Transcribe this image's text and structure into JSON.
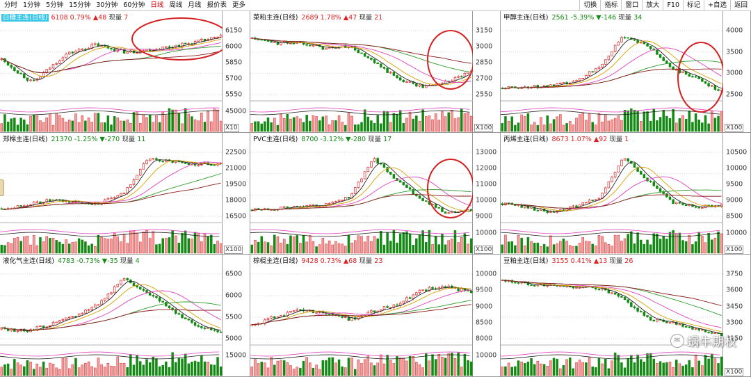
{
  "toolbar": {
    "periods": [
      "分时",
      "1分钟",
      "5分钟",
      "15分钟",
      "30分钟",
      "60分钟",
      "日线",
      "周线",
      "月线",
      "报价表",
      "更多"
    ],
    "active": "日线",
    "right": [
      "切换",
      "指标",
      "窗口",
      "放大",
      "F10",
      "标记",
      "+自选",
      "返回"
    ]
  },
  "watermark": {
    "text": "蜗牛期权",
    "icon": "wechat-icon"
  },
  "colors": {
    "up": "#e02020",
    "down": "#138a13",
    "highlight": "#35c6e8",
    "circle": "#d42020"
  },
  "panels": [
    {
      "name": "白糖主连(日线)",
      "price": "6108",
      "pct": "0.79%",
      "chg": "▲48",
      "cur_label": "现量",
      "cur": "7",
      "dir": "up",
      "highlight": true,
      "ticks": [
        "6150",
        "6000",
        "5850",
        "5700",
        "5550"
      ],
      "vol_tick": "45000",
      "vol_unit": "X10",
      "trend": [
        0.55,
        0.18,
        0.62,
        0.78,
        0.66,
        0.72,
        0.8,
        0.9
      ],
      "noise": 0.06,
      "circled": true
    },
    {
      "name": "菜粕主连(日线)",
      "price": "2689",
      "pct": "1.78%",
      "chg": "▲47",
      "cur_label": "现量",
      "cur": "21",
      "dir": "up",
      "highlight": false,
      "ticks": [
        "3150",
        "3000",
        "2850",
        "2700",
        "2550"
      ],
      "vol_tick": "",
      "vol_unit": "X100",
      "trend": [
        0.88,
        0.8,
        0.82,
        0.72,
        0.76,
        0.5,
        0.25,
        0.12,
        0.2,
        0.35
      ],
      "noise": 0.05,
      "circled": true
    },
    {
      "name": "甲醇主连(日线)",
      "price": "2561",
      "pct": "-5.39%",
      "chg": "▼-146",
      "cur_label": "现量",
      "cur": "34",
      "dir": "down",
      "highlight": false,
      "ticks": [
        "4000",
        "3500",
        "3000",
        "2500"
      ],
      "vol_tick": "",
      "vol_unit": "X100",
      "trend": [
        0.1,
        0.12,
        0.13,
        0.2,
        0.45,
        0.92,
        0.75,
        0.4,
        0.25,
        0.05
      ],
      "noise": 0.05,
      "circled": true
    },
    {
      "name": "郑棉主连(日线)",
      "price": "21370",
      "pct": "-1.25%",
      "chg": "▼-270",
      "cur_label": "现量",
      "cur": "11",
      "dir": "down",
      "highlight": false,
      "ticks": [
        "22500",
        "21000",
        "19500",
        "18000",
        "16500"
      ],
      "vol_tick": "",
      "vol_unit": "X100",
      "trend": [
        0.12,
        0.18,
        0.25,
        0.22,
        0.2,
        0.35,
        0.9,
        0.85,
        0.82,
        0.82
      ],
      "noise": 0.05,
      "circled": false
    },
    {
      "name": "PVC主连(日线)",
      "price": "8700",
      "pct": "-3.12%",
      "chg": "▼-280",
      "cur_label": "现量",
      "cur": "17",
      "dir": "down",
      "highlight": false,
      "ticks": [
        "13000",
        "12000",
        "11000",
        "10000",
        "9000"
      ],
      "vol_tick": "10000",
      "vol_unit": "X100",
      "trend": [
        0.1,
        0.12,
        0.15,
        0.18,
        0.3,
        0.9,
        0.55,
        0.25,
        0.05,
        0.1
      ],
      "noise": 0.04,
      "circled": true
    },
    {
      "name": "丙烯主连(日线)",
      "price": "8673",
      "pct": "1.07%",
      "chg": "▲92",
      "cur_label": "现量",
      "cur": "1",
      "dir": "up",
      "highlight": false,
      "ticks": [
        "10500",
        "10000",
        "9500",
        "9000",
        "8500"
      ],
      "vol_tick": "10000",
      "vol_unit": "X100",
      "trend": [
        0.2,
        0.15,
        0.05,
        0.15,
        0.3,
        0.92,
        0.55,
        0.2,
        0.15,
        0.18
      ],
      "noise": 0.05,
      "circled": false
    },
    {
      "name": "液化气主连(日线)",
      "price": "4783",
      "pct": "-0.73%",
      "chg": "▼-35",
      "cur_label": "现量",
      "cur": "4",
      "dir": "down",
      "highlight": false,
      "ticks": [
        "6500",
        "6000",
        "5500",
        "5000"
      ],
      "vol_tick": "15000",
      "vol_unit": "",
      "trend": [
        0.15,
        0.12,
        0.22,
        0.35,
        0.55,
        0.92,
        0.72,
        0.45,
        0.2,
        0.1
      ],
      "noise": 0.05,
      "circled": false
    },
    {
      "name": "棕榈主连(日线)",
      "price": "9428",
      "pct": "0.73%",
      "chg": "▲68",
      "cur_label": "现量",
      "cur": "23",
      "dir": "up",
      "highlight": false,
      "ticks": [
        "10000",
        "9500",
        "9000",
        "8500",
        "8000"
      ],
      "vol_tick": "10000",
      "vol_unit": "",
      "trend": [
        0.2,
        0.35,
        0.45,
        0.4,
        0.3,
        0.42,
        0.55,
        0.75,
        0.8,
        0.72
      ],
      "noise": 0.06,
      "circled": false
    },
    {
      "name": "豆粕主连(日线)",
      "price": "3155",
      "pct": "0.41%",
      "chg": "▲13",
      "cur_label": "现量",
      "cur": "26",
      "dir": "up",
      "highlight": false,
      "ticks": [
        "3750",
        "3600",
        "3450",
        "3300",
        "3150"
      ],
      "vol_tick": "",
      "vol_unit": "X100",
      "trend": [
        0.9,
        0.85,
        0.82,
        0.8,
        0.78,
        0.6,
        0.3,
        0.25,
        0.15,
        0.05
      ],
      "noise": 0.05,
      "circled": false
    }
  ]
}
